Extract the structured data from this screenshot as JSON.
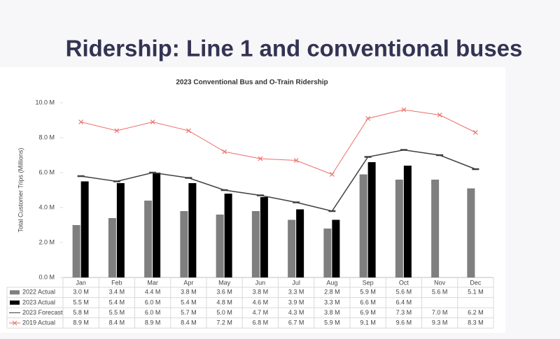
{
  "page_title": "Ridership: Line 1 and conventional buses",
  "chart_data": {
    "type": "bar-line",
    "title": "2023 Conventional Bus and O-Train Ridership",
    "y_label": "Total Customer Trips (Millions)",
    "categories": [
      "Jan",
      "Feb",
      "Mar",
      "Apr",
      "May",
      "Jun",
      "Jul",
      "Aug",
      "Sep",
      "Oct",
      "Nov",
      "Dec"
    ],
    "ylim": [
      0,
      10
    ],
    "yticks": [
      {
        "value": 0,
        "label": "0.0 M"
      },
      {
        "value": 2,
        "label": "2.0 M"
      },
      {
        "value": 4,
        "label": "4.0 M"
      },
      {
        "value": 6,
        "label": "6.0 M"
      },
      {
        "value": 8,
        "label": "8.0 M"
      },
      {
        "value": 10,
        "label": "10.0 M"
      }
    ],
    "grid": false,
    "series": [
      {
        "name": "2022 Actual",
        "kind": "bar",
        "color": "#7f7f7f",
        "values": [
          3.0,
          3.4,
          4.4,
          3.8,
          3.6,
          3.8,
          3.3,
          2.8,
          5.9,
          5.6,
          5.6,
          5.1
        ],
        "value_labels": [
          "3.0 M",
          "3.4 M",
          "4.4 M",
          "3.8 M",
          "3.6 M",
          "3.8 M",
          "3.3 M",
          "2.8 M",
          "5.9 M",
          "5.6 M",
          "5.6 M",
          "5.1 M"
        ]
      },
      {
        "name": "2023 Actual",
        "kind": "bar",
        "color": "#000000",
        "values": [
          5.5,
          5.4,
          6.0,
          5.4,
          4.8,
          4.6,
          3.9,
          3.3,
          6.6,
          6.4,
          null,
          null
        ],
        "value_labels": [
          "5.5 M",
          "5.4 M",
          "6.0 M",
          "5.4 M",
          "4.8 M",
          "4.6 M",
          "3.9 M",
          "3.3 M",
          "6.6 M",
          "6.4 M",
          null,
          null
        ]
      },
      {
        "name": "2023 Forecast",
        "kind": "line",
        "marker": "dash",
        "color": "#404040",
        "values": [
          5.8,
          5.5,
          6.0,
          5.7,
          5.0,
          4.7,
          4.3,
          3.8,
          6.9,
          7.3,
          7.0,
          6.2
        ],
        "value_labels": [
          "5.8 M",
          "5.5 M",
          "6.0 M",
          "5.7 M",
          "5.0 M",
          "4.7 M",
          "4.3 M",
          "3.8 M",
          "6.9 M",
          "7.3 M",
          "7.0 M",
          "6.2 M"
        ]
      },
      {
        "name": "2019 Actual",
        "kind": "line",
        "marker": "x",
        "color": "#e8706a",
        "values": [
          8.9,
          8.4,
          8.9,
          8.4,
          7.2,
          6.8,
          6.7,
          5.9,
          9.1,
          9.6,
          9.3,
          8.3
        ],
        "value_labels": [
          "8.9 M",
          "8.4 M",
          "8.9 M",
          "8.4 M",
          "7.2 M",
          "6.8 M",
          "6.7 M",
          "5.9 M",
          "9.1 M",
          "9.6 M",
          "9.3 M",
          "8.3 M"
        ]
      }
    ]
  }
}
